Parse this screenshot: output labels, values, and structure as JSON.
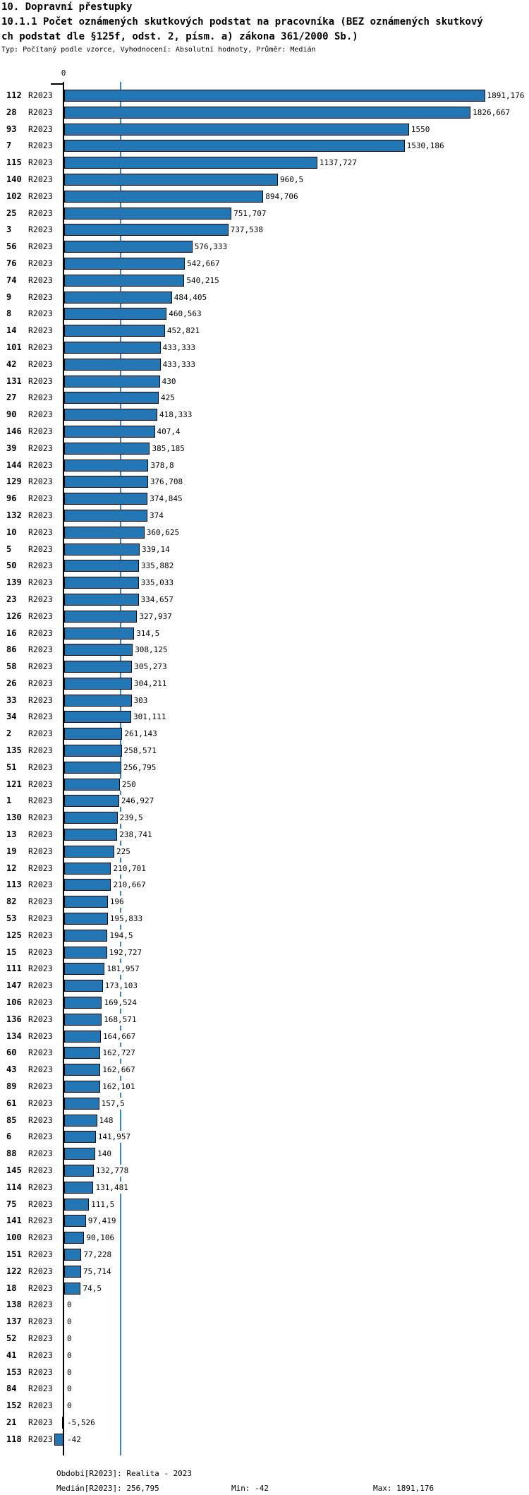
{
  "header": {
    "title_line1": "10. Dopravní přestupky",
    "title_line2": "10.1.1 Počet oznámených skutkových podstat na pracovníka (BEZ oznámených skutkový",
    "title_line3": "ch podstat dle §125f, odst. 2, písm. a) zákona 361/2000 Sb.)",
    "subtitle": "Typ: Počítaný podle vzorce, Vyhodnocení: Absolutní hodnoty, Průměr: Medián"
  },
  "chart_data": {
    "type": "bar",
    "orientation": "horizontal",
    "axis_zero_label": "0",
    "series_name": "R2023",
    "median": 256.795,
    "min": -42,
    "max": 1891.176,
    "xlim": [
      -42,
      1891.176
    ],
    "grid": false,
    "colors": {
      "bar_fill": "#2276b4",
      "bar_border": "#000000",
      "median_line": "#3a87c0",
      "axis": "#000000"
    },
    "rows": [
      {
        "category": "112",
        "period": "R2023",
        "value": 1891.176,
        "label": "1891,176"
      },
      {
        "category": "28",
        "period": "R2023",
        "value": 1826.667,
        "label": "1826,667"
      },
      {
        "category": "93",
        "period": "R2023",
        "value": 1550,
        "label": "1550"
      },
      {
        "category": "7",
        "period": "R2023",
        "value": 1530.186,
        "label": "1530,186"
      },
      {
        "category": "115",
        "period": "R2023",
        "value": 1137.727,
        "label": "1137,727"
      },
      {
        "category": "140",
        "period": "R2023",
        "value": 960.5,
        "label": "960,5"
      },
      {
        "category": "102",
        "period": "R2023",
        "value": 894.706,
        "label": "894,706"
      },
      {
        "category": "25",
        "period": "R2023",
        "value": 751.707,
        "label": "751,707"
      },
      {
        "category": "3",
        "period": "R2023",
        "value": 737.538,
        "label": "737,538"
      },
      {
        "category": "56",
        "period": "R2023",
        "value": 576.333,
        "label": "576,333"
      },
      {
        "category": "76",
        "period": "R2023",
        "value": 542.667,
        "label": "542,667"
      },
      {
        "category": "74",
        "period": "R2023",
        "value": 540.215,
        "label": "540,215"
      },
      {
        "category": "9",
        "period": "R2023",
        "value": 484.405,
        "label": "484,405"
      },
      {
        "category": "8",
        "period": "R2023",
        "value": 460.563,
        "label": "460,563"
      },
      {
        "category": "14",
        "period": "R2023",
        "value": 452.821,
        "label": "452,821"
      },
      {
        "category": "101",
        "period": "R2023",
        "value": 433.333,
        "label": "433,333"
      },
      {
        "category": "42",
        "period": "R2023",
        "value": 433.333,
        "label": "433,333"
      },
      {
        "category": "131",
        "period": "R2023",
        "value": 430,
        "label": "430"
      },
      {
        "category": "27",
        "period": "R2023",
        "value": 425,
        "label": "425"
      },
      {
        "category": "90",
        "period": "R2023",
        "value": 418.333,
        "label": "418,333"
      },
      {
        "category": "146",
        "period": "R2023",
        "value": 407.4,
        "label": "407,4"
      },
      {
        "category": "39",
        "period": "R2023",
        "value": 385.185,
        "label": "385,185"
      },
      {
        "category": "144",
        "period": "R2023",
        "value": 378.8,
        "label": "378,8"
      },
      {
        "category": "129",
        "period": "R2023",
        "value": 376.708,
        "label": "376,708"
      },
      {
        "category": "96",
        "period": "R2023",
        "value": 374.845,
        "label": "374,845"
      },
      {
        "category": "132",
        "period": "R2023",
        "value": 374,
        "label": "374"
      },
      {
        "category": "10",
        "period": "R2023",
        "value": 360.625,
        "label": "360,625"
      },
      {
        "category": "5",
        "period": "R2023",
        "value": 339.14,
        "label": "339,14"
      },
      {
        "category": "50",
        "period": "R2023",
        "value": 335.882,
        "label": "335,882"
      },
      {
        "category": "139",
        "period": "R2023",
        "value": 335.033,
        "label": "335,033"
      },
      {
        "category": "23",
        "period": "R2023",
        "value": 334.657,
        "label": "334,657"
      },
      {
        "category": "126",
        "period": "R2023",
        "value": 327.937,
        "label": "327,937"
      },
      {
        "category": "16",
        "period": "R2023",
        "value": 314.5,
        "label": "314,5"
      },
      {
        "category": "86",
        "period": "R2023",
        "value": 308.125,
        "label": "308,125"
      },
      {
        "category": "58",
        "period": "R2023",
        "value": 305.273,
        "label": "305,273"
      },
      {
        "category": "26",
        "period": "R2023",
        "value": 304.211,
        "label": "304,211"
      },
      {
        "category": "33",
        "period": "R2023",
        "value": 303,
        "label": "303"
      },
      {
        "category": "34",
        "period": "R2023",
        "value": 301.111,
        "label": "301,111"
      },
      {
        "category": "2",
        "period": "R2023",
        "value": 261.143,
        "label": "261,143"
      },
      {
        "category": "135",
        "period": "R2023",
        "value": 258.571,
        "label": "258,571"
      },
      {
        "category": "51",
        "period": "R2023",
        "value": 256.795,
        "label": "256,795"
      },
      {
        "category": "121",
        "period": "R2023",
        "value": 250,
        "label": "250"
      },
      {
        "category": "1",
        "period": "R2023",
        "value": 246.927,
        "label": "246,927"
      },
      {
        "category": "130",
        "period": "R2023",
        "value": 239.5,
        "label": "239,5"
      },
      {
        "category": "13",
        "period": "R2023",
        "value": 238.741,
        "label": "238,741"
      },
      {
        "category": "19",
        "period": "R2023",
        "value": 225,
        "label": "225"
      },
      {
        "category": "12",
        "period": "R2023",
        "value": 210.701,
        "label": "210,701"
      },
      {
        "category": "113",
        "period": "R2023",
        "value": 210.667,
        "label": "210,667"
      },
      {
        "category": "82",
        "period": "R2023",
        "value": 196,
        "label": "196"
      },
      {
        "category": "53",
        "period": "R2023",
        "value": 195.833,
        "label": "195,833"
      },
      {
        "category": "125",
        "period": "R2023",
        "value": 194.5,
        "label": "194,5"
      },
      {
        "category": "15",
        "period": "R2023",
        "value": 192.727,
        "label": "192,727"
      },
      {
        "category": "111",
        "period": "R2023",
        "value": 181.957,
        "label": "181,957"
      },
      {
        "category": "147",
        "period": "R2023",
        "value": 173.103,
        "label": "173,103"
      },
      {
        "category": "106",
        "period": "R2023",
        "value": 169.524,
        "label": "169,524"
      },
      {
        "category": "136",
        "period": "R2023",
        "value": 168.571,
        "label": "168,571"
      },
      {
        "category": "134",
        "period": "R2023",
        "value": 164.667,
        "label": "164,667"
      },
      {
        "category": "60",
        "period": "R2023",
        "value": 162.727,
        "label": "162,727"
      },
      {
        "category": "43",
        "period": "R2023",
        "value": 162.667,
        "label": "162,667"
      },
      {
        "category": "89",
        "period": "R2023",
        "value": 162.101,
        "label": "162,101"
      },
      {
        "category": "61",
        "period": "R2023",
        "value": 157.5,
        "label": "157,5"
      },
      {
        "category": "85",
        "period": "R2023",
        "value": 148,
        "label": "148"
      },
      {
        "category": "6",
        "period": "R2023",
        "value": 141.957,
        "label": "141,957"
      },
      {
        "category": "88",
        "period": "R2023",
        "value": 140,
        "label": "140"
      },
      {
        "category": "145",
        "period": "R2023",
        "value": 132.778,
        "label": "132,778"
      },
      {
        "category": "114",
        "period": "R2023",
        "value": 131.481,
        "label": "131,481"
      },
      {
        "category": "75",
        "period": "R2023",
        "value": 111.5,
        "label": "111,5"
      },
      {
        "category": "141",
        "period": "R2023",
        "value": 97.419,
        "label": "97,419"
      },
      {
        "category": "100",
        "period": "R2023",
        "value": 90.106,
        "label": "90,106"
      },
      {
        "category": "151",
        "period": "R2023",
        "value": 77.228,
        "label": "77,228"
      },
      {
        "category": "122",
        "period": "R2023",
        "value": 75.714,
        "label": "75,714"
      },
      {
        "category": "18",
        "period": "R2023",
        "value": 74.5,
        "label": "74,5"
      },
      {
        "category": "138",
        "period": "R2023",
        "value": 0,
        "label": "0"
      },
      {
        "category": "137",
        "period": "R2023",
        "value": 0,
        "label": "0"
      },
      {
        "category": "52",
        "period": "R2023",
        "value": 0,
        "label": "0"
      },
      {
        "category": "41",
        "period": "R2023",
        "value": 0,
        "label": "0"
      },
      {
        "category": "153",
        "period": "R2023",
        "value": 0,
        "label": "0"
      },
      {
        "category": "84",
        "period": "R2023",
        "value": 0,
        "label": "0"
      },
      {
        "category": "152",
        "period": "R2023",
        "value": 0,
        "label": "0"
      },
      {
        "category": "21",
        "period": "R2023",
        "value": -5.526,
        "label": "-5,526"
      },
      {
        "category": "118",
        "period": "R2023",
        "value": -42,
        "label": "-42"
      }
    ]
  },
  "footer": {
    "period_label": "Období[R2023]: Realita - 2023",
    "median_label": "Medián[R2023]: 256,795",
    "min_label": "Min: -42",
    "max_label": "Max: 1891,176"
  }
}
